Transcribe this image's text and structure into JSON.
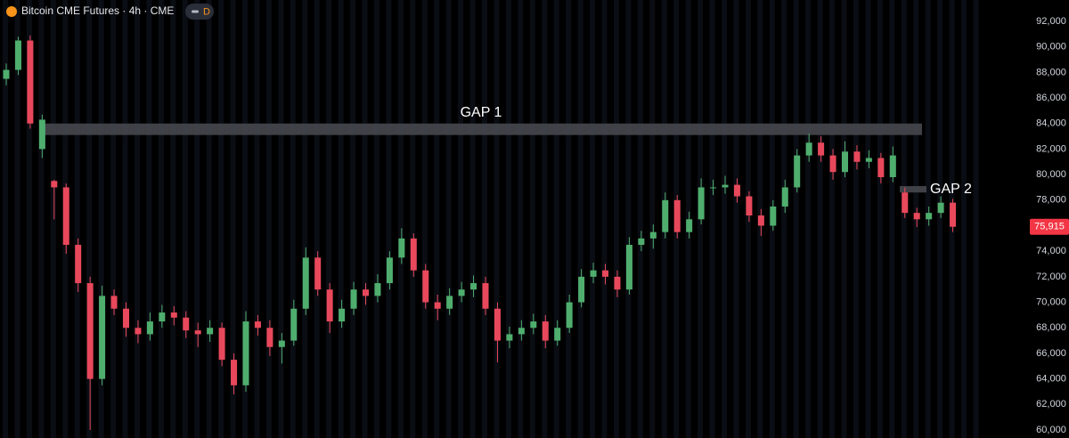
{
  "chart_data": {
    "type": "candlestick",
    "title": "Bitcoin CME Futures · 4h · CME",
    "badge": "D",
    "up_color": "#4fae6e",
    "down_color": "#e8485b",
    "open": [
      87500,
      88200,
      90500,
      82000,
      79500,
      79000,
      74500,
      71500,
      64000,
      70500,
      69500,
      68000,
      67500,
      68500,
      69200,
      68800,
      67800,
      67500,
      68000,
      65500,
      63500,
      68500,
      68000,
      66500,
      67000,
      69500,
      73500,
      71000,
      68500,
      69500,
      71000,
      70500,
      71500,
      73500,
      75000,
      72500,
      70000,
      69500,
      70500,
      71000,
      71500,
      69500,
      67000,
      67500,
      68000,
      68500,
      67000,
      68000,
      70000,
      72000,
      72500,
      72000,
      71000,
      74500,
      75000,
      75500,
      78000,
      75500,
      76500,
      79000,
      79000,
      79200,
      78300,
      76800,
      76000,
      77500,
      79000,
      81500,
      82500,
      81500,
      80200,
      81800,
      81000,
      81300,
      79800,
      78600,
      77000,
      76500,
      77000,
      77800
    ],
    "high": [
      88700,
      90800,
      90900,
      84700,
      79600,
      79300,
      75000,
      72000,
      71300,
      71000,
      70000,
      68600,
      69200,
      69800,
      69700,
      69300,
      68400,
      68600,
      68400,
      66000,
      69300,
      69000,
      68600,
      67600,
      70200,
      74300,
      74000,
      71500,
      70200,
      71600,
      71500,
      72200,
      74000,
      75800,
      75400,
      73000,
      70600,
      71100,
      71600,
      72100,
      72000,
      70000,
      68100,
      68600,
      69100,
      69000,
      68600,
      70600,
      72600,
      73100,
      73000,
      72500,
      75100,
      75600,
      76100,
      78600,
      78400,
      77100,
      79700,
      79600,
      79900,
      79700,
      78700,
      77300,
      78000,
      79600,
      82000,
      83200,
      83000,
      82000,
      82600,
      82300,
      81900,
      81700,
      82200,
      79000,
      77400,
      77500,
      78300,
      78100
    ],
    "low": [
      87000,
      87800,
      83600,
      81300,
      76500,
      73800,
      70800,
      60000,
      63500,
      69000,
      67300,
      66800,
      67000,
      68000,
      68200,
      67200,
      66500,
      66900,
      65000,
      62800,
      63000,
      67400,
      65800,
      65200,
      66600,
      69000,
      70500,
      67600,
      68000,
      69000,
      69800,
      70000,
      71000,
      73000,
      72000,
      69500,
      68600,
      69000,
      70000,
      70400,
      69000,
      65300,
      66400,
      67000,
      67500,
      66400,
      66600,
      67600,
      69600,
      71500,
      71400,
      70400,
      70600,
      74000,
      74200,
      75000,
      75000,
      75000,
      76100,
      78400,
      78500,
      77800,
      76300,
      75200,
      75600,
      77000,
      78600,
      81000,
      81000,
      79600,
      79800,
      80400,
      80500,
      79300,
      79400,
      76600,
      75900,
      76000,
      76600,
      75500
    ],
    "close": [
      88200,
      90500,
      84000,
      84300,
      79000,
      74500,
      71500,
      64000,
      70500,
      69500,
      68000,
      67500,
      68500,
      69200,
      68800,
      67800,
      67500,
      68000,
      65500,
      63500,
      68500,
      68000,
      66500,
      67000,
      69500,
      73500,
      71000,
      68500,
      69500,
      71000,
      70500,
      71500,
      73500,
      75000,
      72500,
      70000,
      69500,
      70500,
      71000,
      71500,
      69500,
      67000,
      67500,
      68000,
      68500,
      67000,
      68000,
      70000,
      72000,
      72500,
      72000,
      71000,
      74500,
      75000,
      75500,
      78000,
      75500,
      76500,
      79000,
      79000,
      79200,
      78300,
      76800,
      76000,
      77500,
      79000,
      81500,
      82500,
      81500,
      80200,
      81800,
      81000,
      81300,
      79800,
      81500,
      77000,
      76500,
      77000,
      77800,
      75915
    ],
    "ylim": [
      60000,
      92000
    ],
    "yticks": [
      {
        "value": 60000,
        "label": "60,000"
      },
      {
        "value": 62000,
        "label": "62,000"
      },
      {
        "value": 64000,
        "label": "64,000"
      },
      {
        "value": 66000,
        "label": "66,000"
      },
      {
        "value": 68000,
        "label": "68,000"
      },
      {
        "value": 70000,
        "label": "70,000"
      },
      {
        "value": 72000,
        "label": "72,000"
      },
      {
        "value": 74000,
        "label": "74,000"
      },
      {
        "value": 76000,
        "label": "76,000"
      },
      {
        "value": 78000,
        "label": "78,000"
      },
      {
        "value": 80000,
        "label": "80,000"
      },
      {
        "value": 82000,
        "label": "82,000"
      },
      {
        "value": 84000,
        "label": "84,000"
      },
      {
        "value": 86000,
        "label": "86,000"
      },
      {
        "value": 88000,
        "label": "88,000"
      },
      {
        "value": 90000,
        "label": "90,000"
      },
      {
        "value": 92000,
        "label": "92,000"
      }
    ],
    "last_price": {
      "value": 75915,
      "label": "75,915"
    },
    "gaps": [
      {
        "label": "GAP 1",
        "low": 83100,
        "high": 84000
      },
      {
        "label": "GAP 2",
        "low": 78600,
        "high": 79100
      }
    ]
  }
}
